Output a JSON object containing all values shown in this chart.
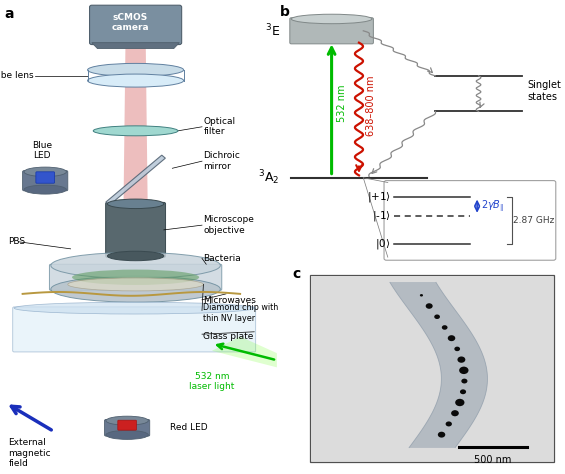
{
  "fig_width": 5.65,
  "fig_height": 4.74,
  "bg_color": "#ffffff",
  "panel_a": {
    "label": "a",
    "cam_color": "#7a8fa0",
    "cam_dark": "#50606d",
    "lens_color": "#c8dce8",
    "filter_color": "#a0d8d0",
    "dichroic_color": "#b8c8d8",
    "obj_color": "#58686e",
    "led_body": "#687890",
    "dish_color": "#c8d4dc",
    "glass_color": "#ddeef8",
    "green_color": "#00bb00",
    "wire_color": "#b89840",
    "blue_arrow": "#1a2fbb",
    "beam_color": "#e09090",
    "bacteria_color": "#70a870"
  },
  "panel_b": {
    "label": "b",
    "green_color": "#00bb00",
    "red_color": "#cc1100",
    "gray_color": "#888888",
    "blue_color": "#2244cc"
  },
  "panel_c": {
    "label": "c",
    "scalebar": "500 nm"
  }
}
